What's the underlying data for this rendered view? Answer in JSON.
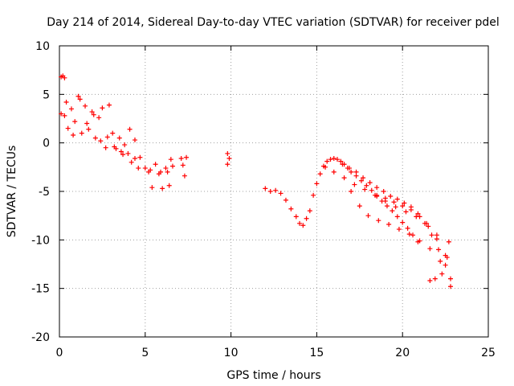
{
  "chart_data": {
    "type": "scatter",
    "title": "Day 214 of 2014, Sidereal Day-to-day VTEC variation (SDTVAR) for receiver pdel",
    "xlabel": "GPS time / hours",
    "ylabel": "SDTVAR / TECUs",
    "xlim": [
      0,
      25
    ],
    "ylim": [
      -20,
      10
    ],
    "xticks": [
      0,
      5,
      10,
      15,
      20,
      25
    ],
    "xtick_labels": [
      "0",
      "5",
      "10",
      "15",
      "20",
      "25"
    ],
    "yticks": [
      -20,
      -15,
      -10,
      -5,
      0,
      5,
      10
    ],
    "ytick_labels": [
      "-20",
      "-15",
      "-10",
      "-5",
      "0",
      "5",
      "10"
    ],
    "grid": true,
    "marker": "+",
    "color": "#ff0000",
    "series": [
      {
        "name": "SDTVAR",
        "x": [
          0.1,
          0.2,
          0.3,
          0.1,
          0.3,
          0.5,
          0.7,
          0.9,
          1.1,
          1.3,
          1.5,
          1.7,
          1.9,
          2.1,
          2.3,
          2.5,
          2.7,
          2.9,
          3.1,
          0.4,
          0.8,
          1.2,
          1.6,
          2.0,
          2.4,
          2.8,
          3.2,
          3.5,
          3.8,
          4.1,
          4.4,
          4.7,
          5.0,
          5.3,
          5.6,
          5.9,
          6.2,
          6.5,
          3.3,
          3.7,
          4.2,
          4.6,
          5.2,
          5.8,
          6.3,
          6.6,
          3.6,
          4.0,
          4.4,
          5.4,
          6.0,
          6.4,
          7.1,
          7.2,
          7.3,
          7.4,
          9.8,
          9.8,
          9.9,
          12.0,
          12.3,
          12.6,
          12.9,
          13.2,
          13.5,
          13.8,
          14.0,
          14.2,
          14.4,
          14.6,
          14.8,
          15.0,
          15.2,
          15.4,
          15.6,
          15.8,
          16.0,
          16.2,
          16.4,
          16.6,
          16.8,
          17.0,
          17.3,
          17.6,
          17.9,
          18.2,
          18.5,
          18.8,
          19.1,
          19.4,
          19.7,
          20.0,
          20.3,
          20.6,
          20.9,
          16.5,
          16.9,
          17.3,
          17.7,
          18.1,
          18.5,
          18.9,
          19.3,
          19.7,
          20.1,
          20.5,
          20.9,
          21.3,
          21.7,
          22.1,
          22.5,
          15.5,
          16.0,
          16.6,
          17.2,
          17.8,
          18.4,
          19.0,
          19.6,
          20.2,
          20.8,
          21.4,
          22.0,
          22.6,
          17.0,
          17.5,
          18.0,
          18.6,
          19.2,
          19.8,
          20.4,
          21.0,
          21.6,
          22.2,
          22.8,
          18.5,
          19.0,
          19.5,
          20.0,
          20.5,
          21.0,
          21.5,
          22.0,
          22.5,
          22.8,
          21.6,
          21.9,
          22.3,
          22.7
        ],
        "y": [
          6.8,
          6.9,
          6.7,
          3.0,
          2.8,
          1.5,
          3.5,
          2.2,
          4.8,
          1.0,
          3.8,
          1.4,
          3.2,
          0.5,
          2.6,
          3.6,
          -0.5,
          3.9,
          1.0,
          4.2,
          0.8,
          4.5,
          2.0,
          2.9,
          0.2,
          0.6,
          -0.4,
          0.5,
          -0.2,
          1.4,
          0.3,
          -1.5,
          -2.6,
          -2.8,
          -2.2,
          -3.0,
          -2.6,
          -1.7,
          -0.6,
          -1.2,
          -2.0,
          -2.6,
          -3.0,
          -3.2,
          -3.0,
          -2.4,
          -0.9,
          -1.1,
          -1.6,
          -4.6,
          -4.7,
          -4.4,
          -1.6,
          -2.3,
          -3.4,
          -1.5,
          -1.1,
          -2.2,
          -1.6,
          -4.7,
          -5.0,
          -4.9,
          -5.2,
          -5.9,
          -6.8,
          -7.6,
          -8.3,
          -8.5,
          -7.8,
          -7.0,
          -5.4,
          -4.2,
          -3.2,
          -2.4,
          -1.9,
          -1.7,
          -1.6,
          -1.7,
          -1.9,
          -2.2,
          -2.6,
          -3.0,
          -3.4,
          -3.9,
          -4.4,
          -4.9,
          -5.5,
          -6.0,
          -6.5,
          -7.0,
          -7.6,
          -8.2,
          -8.8,
          -9.5,
          -10.2,
          -2.2,
          -2.6,
          -3.0,
          -3.6,
          -4.1,
          -4.6,
          -5.0,
          -5.5,
          -5.8,
          -6.2,
          -6.6,
          -7.3,
          -8.3,
          -9.5,
          -11.0,
          -12.6,
          -2.5,
          -3.0,
          -3.6,
          -4.3,
          -4.8,
          -5.4,
          -6.0,
          -6.6,
          -7.1,
          -7.6,
          -8.3,
          -9.5,
          -11.8,
          -5.0,
          -6.5,
          -7.5,
          -8.0,
          -8.4,
          -8.9,
          -9.4,
          -10.1,
          -10.9,
          -12.2,
          -14.0,
          -5.4,
          -5.7,
          -6.1,
          -6.5,
          -6.9,
          -7.6,
          -8.6,
          -9.9,
          -11.6,
          -14.8,
          -14.2,
          -14.0,
          -13.5,
          -10.2
        ]
      }
    ]
  }
}
